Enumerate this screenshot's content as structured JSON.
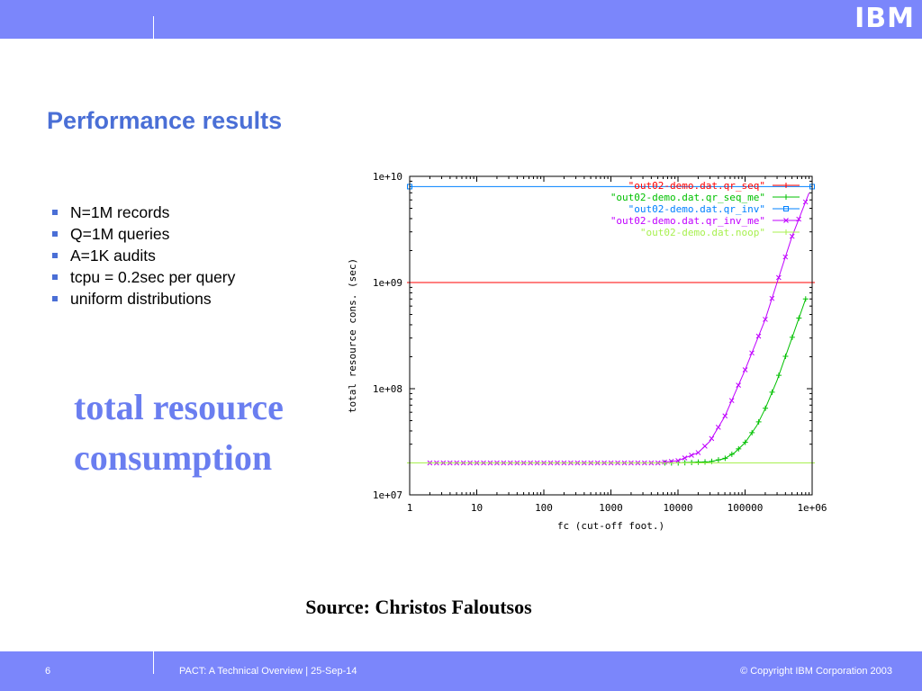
{
  "header": {
    "logo": "IBM"
  },
  "slide": {
    "title": "Performance results",
    "bullets": [
      "N=1M records",
      "Q=1M queries",
      "A=1K audits",
      "tcpu = 0.2sec per query",
      "uniform distributions"
    ],
    "big_text_line1": "total resource",
    "big_text_line2": "consumption",
    "source": "Source: Christos Faloutsos"
  },
  "footer": {
    "page": "6",
    "presentation": "PACT: A Technical Overview  |  25-Sep-14",
    "copyright": "© Copyright IBM Corporation 2003"
  },
  "colors": {
    "bar": "#7b86fb",
    "title": "#4a6fd6",
    "big_text": "#6a7ef0"
  },
  "chart_data": {
    "type": "line",
    "xlabel": "fc (cut-off foot.)",
    "ylabel": "total resource cons. (sec)",
    "xscale": "log",
    "yscale": "log",
    "xlim": [
      1,
      1000000
    ],
    "ylim": [
      10000000,
      10000000000
    ],
    "xticks": [
      1,
      10,
      100,
      1000,
      10000,
      100000,
      1000000
    ],
    "xtick_labels": [
      "1",
      "10",
      "100",
      "1000",
      "10000",
      "100000",
      "1e+06"
    ],
    "yticks": [
      10000000,
      100000000,
      1000000000,
      10000000000
    ],
    "ytick_labels": [
      "1e+07",
      "1e+08",
      "1e+09",
      "1e+10"
    ],
    "legend_position": "top-right",
    "series": [
      {
        "name": "\"out02-demo.dat.qr_seq\"",
        "color": "#ff0000",
        "marker": "+",
        "x": [
          1,
          1000000
        ],
        "y": [
          1000000000,
          1000000000
        ]
      },
      {
        "name": "\"out02-demo.dat.qr_seq_me\"",
        "color": "#00c000",
        "marker": "+",
        "x": [
          1,
          10000,
          30000,
          50000,
          70000,
          100000,
          150000,
          200000,
          300000,
          500000,
          800000
        ],
        "y": [
          20000000,
          20000000,
          20500000,
          22000000,
          25000000,
          31000000,
          45000000,
          65000000,
          120000000,
          300000000,
          700000000
        ]
      },
      {
        "name": "\"out02-demo.dat.qr_inv\"",
        "color": "#0080ff",
        "marker": "square",
        "x": [
          1,
          1000000
        ],
        "y": [
          8000000000,
          8000000000
        ]
      },
      {
        "name": "\"out02-demo.dat.qr_inv_me\"",
        "color": "#c000ff",
        "marker": "x",
        "x": [
          1,
          2,
          5,
          10,
          100,
          1000,
          5000,
          10000,
          20000,
          30000,
          50000,
          100000,
          200000,
          300000,
          500000,
          900000
        ],
        "y": [
          20000000,
          20000000,
          20000000,
          20000000,
          20000000,
          20000000,
          20000000,
          21000000,
          25000000,
          32000000,
          55000000,
          150000000,
          450000000,
          1000000000,
          2700000000,
          7000000000
        ]
      },
      {
        "name": "\"out02-demo.dat.noop\"",
        "color": "#a8f050",
        "marker": "+",
        "x": [
          1,
          1000000
        ],
        "y": [
          20000000,
          20000000
        ]
      }
    ]
  }
}
